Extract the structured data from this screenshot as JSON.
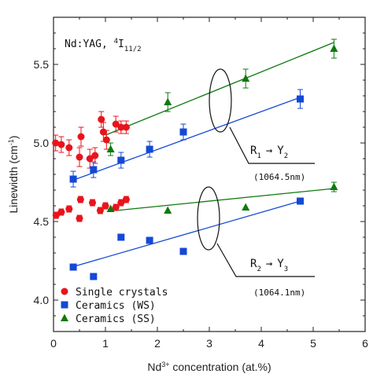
{
  "chart_data": {
    "type": "scatter",
    "title": "",
    "xlabel_main": "Nd",
    "xlabel_sup": "3+",
    "xlabel_rest": " concentration (at.%)",
    "ylabel_main": "Linewidth (cm",
    "ylabel_sup": "-1",
    "ylabel_rest": ")",
    "xlim": [
      0,
      6
    ],
    "ylim": [
      3.8,
      5.8
    ],
    "xticks": [
      0,
      1,
      2,
      3,
      4,
      5,
      6
    ],
    "yticks": [
      4.0,
      4.5,
      5.0,
      5.5
    ],
    "grid": false,
    "legend_position": "bottom-left",
    "annotation": {
      "material": "Nd:YAG, ",
      "level_sup": "4",
      "level_main": "I",
      "level_sub": "11/2"
    },
    "transition_upper": {
      "from_main": "R",
      "from_sub": "1",
      "arrow": "→",
      "to_main": "Y",
      "to_sub": "2",
      "wavelength": "(1064.5nm)"
    },
    "transition_lower": {
      "from_main": "R",
      "from_sub": "2",
      "arrow": "→",
      "to_main": "Y",
      "to_sub": "3",
      "wavelength": "(1064.1nm)"
    },
    "series": [
      {
        "name": "Single crystals",
        "marker": "circle",
        "color": "#e8141c",
        "points": [
          {
            "x": 0.04,
            "y": 5.0,
            "err": 0.05
          },
          {
            "x": 0.15,
            "y": 4.99,
            "err": 0.05
          },
          {
            "x": 0.3,
            "y": 4.97,
            "err": 0.05
          },
          {
            "x": 0.5,
            "y": 4.91,
            "err": 0.06
          },
          {
            "x": 0.53,
            "y": 5.04,
            "err": 0.06
          },
          {
            "x": 0.7,
            "y": 4.9,
            "err": 0.06
          },
          {
            "x": 0.8,
            "y": 4.92,
            "err": 0.05
          },
          {
            "x": 0.92,
            "y": 5.15,
            "err": 0.05
          },
          {
            "x": 0.96,
            "y": 5.07,
            "err": 0.06
          },
          {
            "x": 1.02,
            "y": 5.02,
            "err": 0.06
          },
          {
            "x": 1.2,
            "y": 5.12,
            "err": 0.05
          },
          {
            "x": 1.3,
            "y": 5.1,
            "err": 0.04
          },
          {
            "x": 1.4,
            "y": 5.1,
            "err": 0.04
          },
          {
            "x": 0.05,
            "y": 4.54,
            "err": 0.02
          },
          {
            "x": 0.15,
            "y": 4.56,
            "err": 0.02
          },
          {
            "x": 0.3,
            "y": 4.58,
            "err": 0.02
          },
          {
            "x": 0.5,
            "y": 4.52,
            "err": 0.02
          },
          {
            "x": 0.52,
            "y": 4.64,
            "err": 0.02
          },
          {
            "x": 0.75,
            "y": 4.62,
            "err": 0.02
          },
          {
            "x": 0.9,
            "y": 4.57,
            "err": 0.02
          },
          {
            "x": 1.0,
            "y": 4.6,
            "err": 0.02
          },
          {
            "x": 1.2,
            "y": 4.59,
            "err": 0.02
          },
          {
            "x": 1.3,
            "y": 4.62,
            "err": 0.02
          },
          {
            "x": 1.4,
            "y": 4.64,
            "err": 0.02
          }
        ]
      },
      {
        "name": "Ceramics (WS)",
        "marker": "square",
        "color": "#1448d6",
        "points": [
          {
            "x": 0.38,
            "y": 4.77,
            "err": 0.05
          },
          {
            "x": 0.77,
            "y": 4.83,
            "err": 0.05
          },
          {
            "x": 1.3,
            "y": 4.89,
            "err": 0.05
          },
          {
            "x": 1.85,
            "y": 4.96,
            "err": 0.05
          },
          {
            "x": 2.5,
            "y": 5.07,
            "err": 0.05
          },
          {
            "x": 4.75,
            "y": 5.28,
            "err": 0.06
          },
          {
            "x": 0.38,
            "y": 4.21
          },
          {
            "x": 0.77,
            "y": 4.15
          },
          {
            "x": 1.3,
            "y": 4.4
          },
          {
            "x": 1.85,
            "y": 4.38
          },
          {
            "x": 2.5,
            "y": 4.31
          },
          {
            "x": 4.75,
            "y": 4.63
          }
        ]
      },
      {
        "name": "Ceramics (SS)",
        "marker": "triangle",
        "color": "#0e7a0e",
        "points": [
          {
            "x": 1.1,
            "y": 4.96,
            "err": 0.04
          },
          {
            "x": 2.2,
            "y": 5.26,
            "err": 0.06
          },
          {
            "x": 3.7,
            "y": 5.41,
            "err": 0.06
          },
          {
            "x": 5.4,
            "y": 5.6,
            "err": 0.06
          },
          {
            "x": 1.1,
            "y": 4.58
          },
          {
            "x": 2.2,
            "y": 4.57
          },
          {
            "x": 3.7,
            "y": 4.59
          },
          {
            "x": 5.4,
            "y": 4.72,
            "err": 0.03
          }
        ]
      }
    ],
    "fit_lines": [
      {
        "color": "#0e7a0e",
        "x": [
          1.0,
          5.4
        ],
        "y": [
          5.05,
          5.64
        ]
      },
      {
        "color": "#1448d6",
        "x": [
          0.35,
          4.75
        ],
        "y": [
          4.76,
          5.29
        ]
      },
      {
        "color": "#0e7a0e",
        "x": [
          1.2,
          5.4
        ],
        "y": [
          4.57,
          4.71
        ]
      },
      {
        "color": "#1448d6",
        "x": [
          0.35,
          4.75
        ],
        "y": [
          4.21,
          4.63
        ]
      }
    ]
  }
}
